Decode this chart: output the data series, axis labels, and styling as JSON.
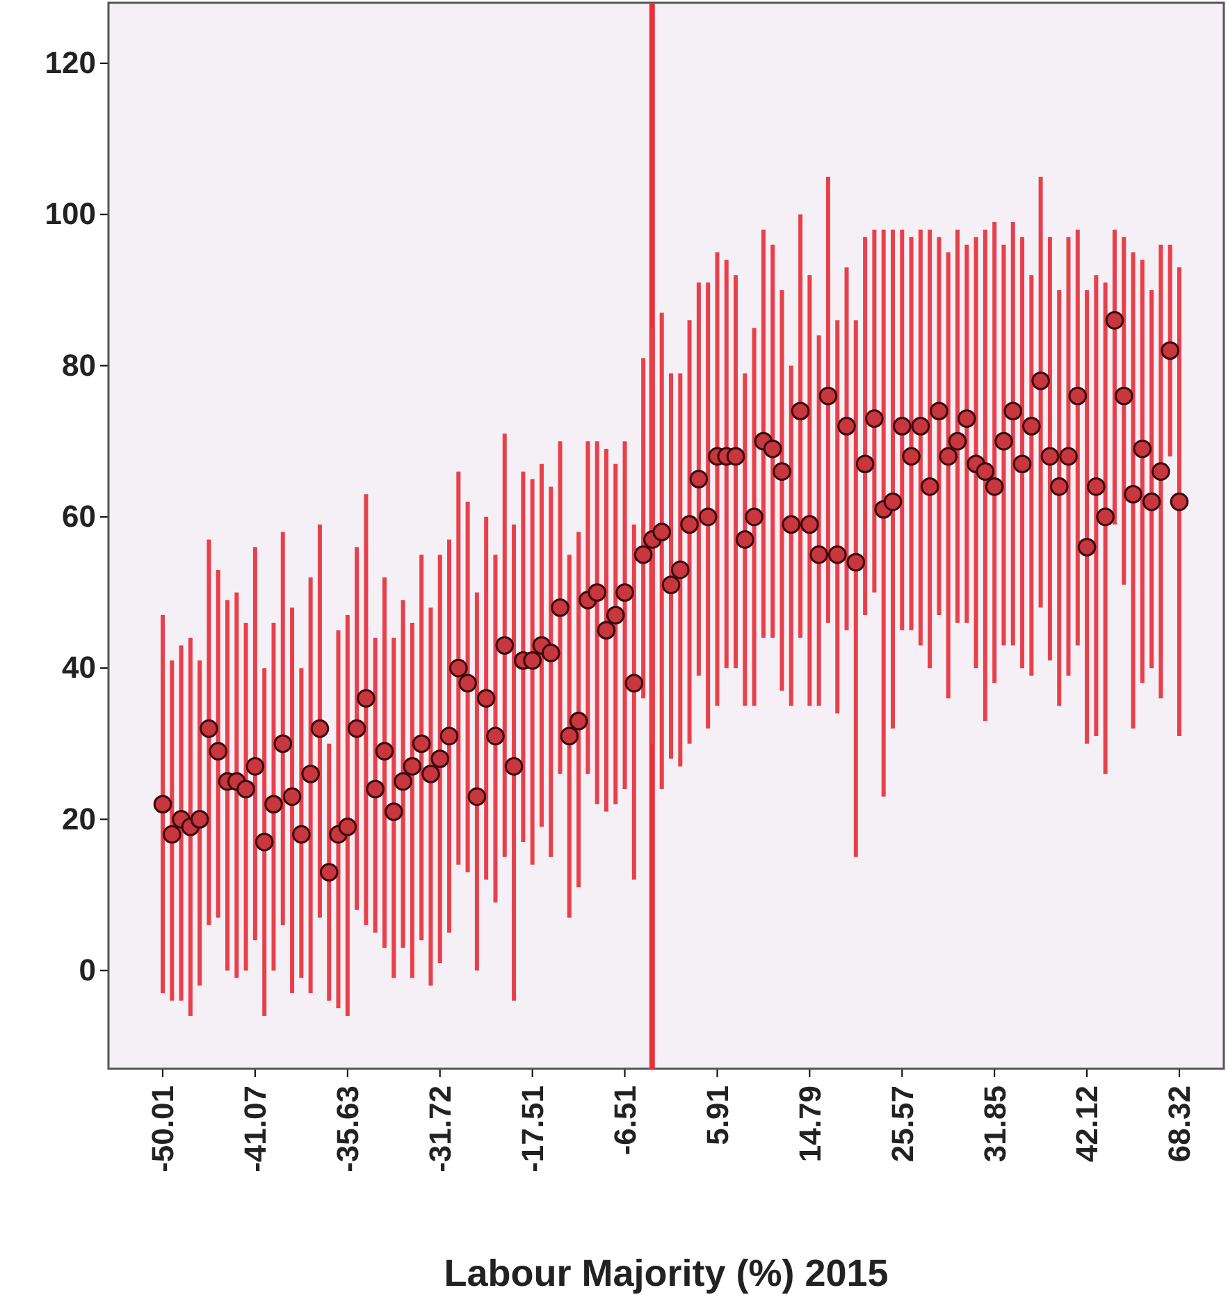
{
  "chart_data": {
    "type": "scatter",
    "xlabel": "Labour Majority (%) 2015",
    "categories": [
      "-50.01",
      null,
      null,
      null,
      null,
      null,
      null,
      null,
      null,
      null,
      "-41.07",
      null,
      null,
      null,
      null,
      null,
      null,
      null,
      null,
      null,
      "-35.63",
      null,
      null,
      null,
      null,
      null,
      null,
      null,
      null,
      null,
      "-31.72",
      null,
      null,
      null,
      null,
      null,
      null,
      null,
      null,
      null,
      "-17.51",
      null,
      null,
      null,
      null,
      null,
      null,
      null,
      null,
      null,
      "-6.51",
      null,
      null,
      null,
      null,
      null,
      null,
      null,
      null,
      null,
      "5.91",
      null,
      null,
      null,
      null,
      null,
      null,
      null,
      null,
      null,
      "14.79",
      null,
      null,
      null,
      null,
      null,
      null,
      null,
      null,
      null,
      "25.57",
      null,
      null,
      null,
      null,
      null,
      null,
      null,
      null,
      null,
      "31.85",
      null,
      null,
      null,
      null,
      null,
      null,
      null,
      null,
      null,
      "42.12",
      null,
      null,
      null,
      null,
      null,
      null,
      null,
      null,
      null,
      "68.32"
    ],
    "values": [
      22,
      18,
      20,
      19,
      20,
      32,
      29,
      25,
      25,
      24,
      27,
      17,
      22,
      30,
      23,
      18,
      26,
      32,
      13,
      18,
      19,
      32,
      36,
      24,
      29,
      21,
      25,
      27,
      30,
      26,
      28,
      31,
      40,
      38,
      23,
      36,
      31,
      43,
      27,
      41,
      41,
      43,
      42,
      48,
      31,
      33,
      49,
      50,
      45,
      47,
      50,
      38,
      55,
      57,
      58,
      51,
      53,
      59,
      65,
      60,
      68,
      68,
      68,
      57,
      60,
      70,
      69,
      66,
      59,
      74,
      59,
      55,
      76,
      55,
      72,
      54,
      67,
      73,
      61,
      62,
      72,
      68,
      72,
      64,
      74,
      68,
      70,
      73,
      67,
      66,
      64,
      70,
      74,
      67,
      72,
      78,
      68,
      64,
      68,
      76,
      56,
      64,
      60,
      86,
      76,
      63,
      69,
      62,
      66,
      82,
      62
    ],
    "errors": [
      [
        -3,
        47
      ],
      [
        -4,
        41
      ],
      [
        -4,
        43
      ],
      [
        -6,
        44
      ],
      [
        -2,
        41
      ],
      [
        6,
        57
      ],
      [
        7,
        53
      ],
      [
        0,
        49
      ],
      [
        -1,
        50
      ],
      [
        0,
        46
      ],
      [
        4,
        56
      ],
      [
        -6,
        40
      ],
      [
        0,
        46
      ],
      [
        6,
        58
      ],
      [
        -3,
        48
      ],
      [
        -1,
        40
      ],
      [
        -3,
        52
      ],
      [
        7,
        59
      ],
      [
        -4,
        30
      ],
      [
        -5,
        45
      ],
      [
        -6,
        47
      ],
      [
        8,
        56
      ],
      [
        6,
        63
      ],
      [
        5,
        44
      ],
      [
        3,
        52
      ],
      [
        -1,
        44
      ],
      [
        3,
        49
      ],
      [
        -1,
        46
      ],
      [
        4,
        55
      ],
      [
        -2,
        48
      ],
      [
        1,
        55
      ],
      [
        5,
        57
      ],
      [
        14,
        66
      ],
      [
        13,
        62
      ],
      [
        0,
        50
      ],
      [
        12,
        60
      ],
      [
        9,
        55
      ],
      [
        15,
        71
      ],
      [
        -4,
        59
      ],
      [
        17,
        66
      ],
      [
        14,
        65
      ],
      [
        19,
        67
      ],
      [
        15,
        64
      ],
      [
        26,
        70
      ],
      [
        7,
        55
      ],
      [
        11,
        58
      ],
      [
        26,
        70
      ],
      [
        22,
        70
      ],
      [
        21,
        69
      ],
      [
        22,
        67
      ],
      [
        24,
        70
      ],
      [
        12,
        59
      ],
      [
        36,
        81
      ],
      [
        30,
        85
      ],
      [
        24,
        87
      ],
      [
        28,
        79
      ],
      [
        27,
        79
      ],
      [
        30,
        86
      ],
      [
        39,
        91
      ],
      [
        32,
        91
      ],
      [
        35,
        95
      ],
      [
        40,
        94
      ],
      [
        40,
        92
      ],
      [
        35,
        79
      ],
      [
        35,
        85
      ],
      [
        44,
        98
      ],
      [
        44,
        96
      ],
      [
        37,
        90
      ],
      [
        35,
        80
      ],
      [
        44,
        100
      ],
      [
        35,
        92
      ],
      [
        35,
        84
      ],
      [
        46,
        105
      ],
      [
        34,
        86
      ],
      [
        45,
        93
      ],
      [
        15,
        86
      ],
      [
        47,
        97
      ],
      [
        50,
        98
      ],
      [
        23,
        98
      ],
      [
        32,
        98
      ],
      [
        45,
        98
      ],
      [
        45,
        97
      ],
      [
        43,
        98
      ],
      [
        40,
        98
      ],
      [
        47,
        97
      ],
      [
        36,
        95
      ],
      [
        46,
        98
      ],
      [
        46,
        96
      ],
      [
        40,
        97
      ],
      [
        33,
        98
      ],
      [
        38,
        99
      ],
      [
        43,
        96
      ],
      [
        43,
        99
      ],
      [
        40,
        97
      ],
      [
        39,
        92
      ],
      [
        48,
        105
      ],
      [
        41,
        97
      ],
      [
        35,
        90
      ],
      [
        39,
        97
      ],
      [
        43,
        98
      ],
      [
        30,
        90
      ],
      [
        31,
        92
      ],
      [
        26,
        91
      ],
      [
        59,
        98
      ],
      [
        51,
        97
      ],
      [
        32,
        95
      ],
      [
        38,
        94
      ],
      [
        40,
        90
      ],
      [
        36,
        96
      ],
      [
        68,
        96
      ],
      [
        31,
        93
      ]
    ],
    "color": "#c8363e",
    "marker": "circle",
    "ylim": [
      -13,
      128
    ],
    "yticks": [
      0,
      20,
      40,
      60,
      80,
      100,
      120
    ]
  }
}
